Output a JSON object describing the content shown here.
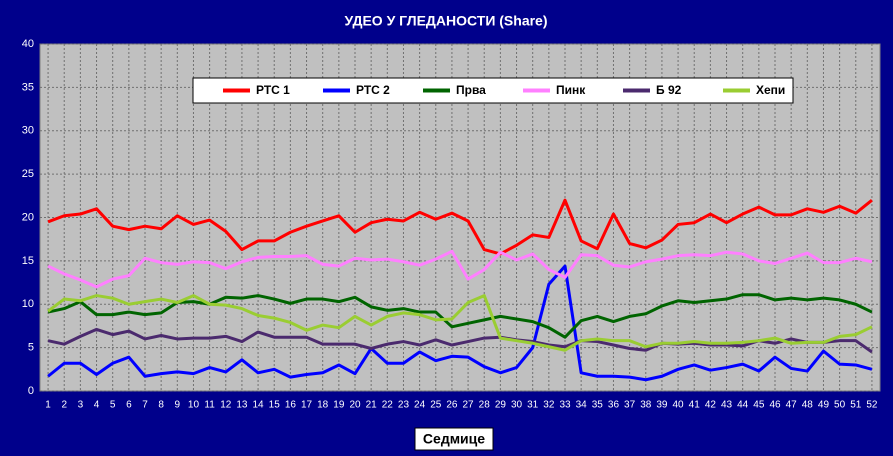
{
  "chart_data": {
    "type": "line",
    "title": "УДЕО У ГЛЕДАНОСТИ (Share)",
    "x_label": "Седмице",
    "categories": [
      "1",
      "2",
      "3",
      "4",
      "5",
      "6",
      "7",
      "8",
      "9",
      "10",
      "11",
      "12",
      "13",
      "14",
      "15",
      "16",
      "17",
      "18",
      "19",
      "20",
      "21",
      "22",
      "23",
      "24",
      "25",
      "26",
      "27",
      "28",
      "29",
      "30",
      "31",
      "32",
      "33",
      "34",
      "35",
      "36",
      "37",
      "38",
      "39",
      "40",
      "41",
      "42",
      "43",
      "44",
      "45",
      "46",
      "47",
      "48",
      "49",
      "50",
      "51",
      "52"
    ],
    "ylim": [
      0,
      40
    ],
    "yticks": [
      0,
      5,
      10,
      15,
      20,
      25,
      30,
      35,
      40
    ],
    "grid": true,
    "legend": "top",
    "series": [
      {
        "name": "РТС 1",
        "color": "#ff0000",
        "values": [
          19.5,
          20.2,
          20.4,
          21,
          19,
          18.6,
          19,
          18.7,
          20.2,
          19.2,
          19.7,
          18.4,
          16.3,
          17.3,
          17.3,
          18.3,
          19,
          19.6,
          20.2,
          18.3,
          19.4,
          19.8,
          19.6,
          20.6,
          19.8,
          20.5,
          19.6,
          16.3,
          15.8,
          16.8,
          18,
          17.7,
          22,
          17.3,
          16.4,
          20.4,
          17,
          16.5,
          17.4,
          19.2,
          19.4,
          20.4,
          19.4,
          20.4,
          21.2,
          20.3,
          20.3,
          21,
          20.6,
          21.3,
          20.5,
          22
        ]
      },
      {
        "name": "РТС 2",
        "color": "#0000ff",
        "values": [
          1.7,
          3.2,
          3.2,
          1.9,
          3.2,
          3.9,
          1.7,
          2,
          2.2,
          2,
          2.7,
          2.2,
          3.6,
          2.1,
          2.5,
          1.6,
          1.9,
          2.1,
          3,
          2,
          4.9,
          3.2,
          3.2,
          4.5,
          3.5,
          4,
          3.9,
          2.8,
          2.1,
          2.7,
          5,
          12.3,
          14.4,
          2.1,
          1.7,
          1.7,
          1.6,
          1.3,
          1.7,
          2.5,
          3,
          2.4,
          2.7,
          3.1,
          2.3,
          3.9,
          2.6,
          2.3,
          4.6,
          3.1,
          3,
          2.5
        ]
      },
      {
        "name": "Прва",
        "color": "#006400",
        "values": [
          9.1,
          9.5,
          10.3,
          8.8,
          8.8,
          9.1,
          8.8,
          9,
          10.2,
          10.3,
          10,
          10.8,
          10.7,
          11,
          10.6,
          10.1,
          10.6,
          10.6,
          10.3,
          10.8,
          9.7,
          9.3,
          9.5,
          9.1,
          9.1,
          7.4,
          7.8,
          8.2,
          8.6,
          8.3,
          8,
          7.3,
          6.2,
          8.1,
          8.6,
          8,
          8.6,
          8.9,
          9.8,
          10.4,
          10.2,
          10.4,
          10.6,
          11.1,
          11.1,
          10.5,
          10.7,
          10.5,
          10.7,
          10.5,
          10,
          9.1
        ]
      },
      {
        "name": "Пинк",
        "color": "#ff80ff",
        "values": [
          14.4,
          13.5,
          12.8,
          12,
          12.9,
          13.3,
          15.3,
          14.8,
          14.6,
          14.9,
          14.8,
          14.1,
          14.9,
          15.4,
          15.5,
          15.5,
          15.6,
          14.6,
          14.4,
          15.3,
          15.1,
          15.2,
          14.9,
          14.5,
          15.2,
          16.1,
          12.9,
          14,
          16,
          15.1,
          15.8,
          14,
          13.1,
          15.7,
          15.6,
          14.5,
          14.3,
          14.9,
          15.2,
          15.6,
          15.7,
          15.6,
          16,
          15.8,
          15,
          14.7,
          15.3,
          15.9,
          14.8,
          14.8,
          15.3,
          14.9
        ]
      },
      {
        "name": "Б 92",
        "color": "#4b2a6e",
        "values": [
          5.8,
          5.4,
          6.3,
          7.1,
          6.5,
          6.9,
          6,
          6.4,
          6,
          6.1,
          6.1,
          6.3,
          5.7,
          6.8,
          6.2,
          6.2,
          6.2,
          5.4,
          5.4,
          5.4,
          4.9,
          5.4,
          5.7,
          5.3,
          5.9,
          5.3,
          5.7,
          6.1,
          6.2,
          5.9,
          5.7,
          5.3,
          5.1,
          5.8,
          5.7,
          5.3,
          4.9,
          4.7,
          5.5,
          5.4,
          5.5,
          5.3,
          5.3,
          5.2,
          5.8,
          5.5,
          6,
          5.6,
          5.6,
          5.8,
          5.8,
          4.5
        ]
      },
      {
        "name": "Хепи",
        "color": "#9acd32",
        "values": [
          9.2,
          10.6,
          10.4,
          11,
          10.7,
          10,
          10.3,
          10.6,
          10.2,
          11,
          10,
          9.9,
          9.5,
          8.7,
          8.4,
          7.9,
          7,
          7.6,
          7.3,
          8.6,
          7.6,
          8.6,
          9,
          8.8,
          8.2,
          8.3,
          10.2,
          11,
          6.1,
          5.8,
          5.5,
          5.1,
          4.7,
          5.8,
          6,
          5.8,
          5.8,
          5.1,
          5.5,
          5.5,
          5.7,
          5.5,
          5.5,
          5.6,
          5.8,
          6.1,
          5.5,
          5.6,
          5.6,
          6.3,
          6.5,
          7.4
        ]
      }
    ]
  }
}
